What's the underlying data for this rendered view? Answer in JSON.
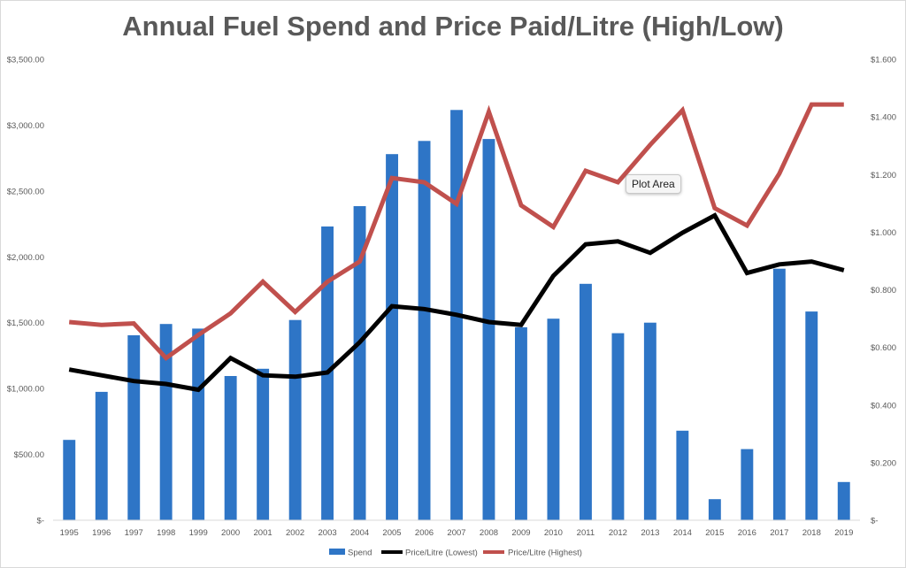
{
  "chart_data": {
    "type": "bar",
    "title": "Annual Fuel Spend and Price Paid/Litre (High/Low)",
    "categories": [
      "1995",
      "1996",
      "1997",
      "1998",
      "1999",
      "2000",
      "2001",
      "2002",
      "2003",
      "2004",
      "2005",
      "2006",
      "2007",
      "2008",
      "2009",
      "2010",
      "2011",
      "2012",
      "2013",
      "2014",
      "2015",
      "2016",
      "2017",
      "2018",
      "2019"
    ],
    "series": [
      {
        "name": "Spend",
        "type": "bar",
        "axis": "left",
        "color": "#2e75c6",
        "values": [
          610,
          975,
          1405,
          1490,
          1455,
          1095,
          1150,
          1520,
          2230,
          2385,
          2780,
          2880,
          3115,
          2895,
          1465,
          1530,
          1795,
          1420,
          1500,
          680,
          160,
          540,
          1910,
          1585,
          290
        ]
      },
      {
        "name": "Price/Litre (Lowest)",
        "type": "line",
        "axis": "right",
        "color": "#000000",
        "values": [
          0.523,
          0.503,
          0.483,
          0.473,
          0.453,
          0.563,
          0.503,
          0.498,
          0.513,
          0.618,
          0.743,
          0.733,
          0.713,
          0.688,
          0.678,
          0.848,
          0.958,
          0.968,
          0.928,
          0.998,
          1.058,
          0.858,
          0.888,
          0.898,
          0.868
        ]
      },
      {
        "name": "Price/Litre (Highest)",
        "type": "line",
        "axis": "right",
        "color": "#c0504d",
        "values": [
          0.688,
          0.678,
          0.683,
          0.563,
          0.643,
          0.718,
          0.828,
          0.723,
          0.828,
          0.898,
          1.188,
          1.173,
          1.098,
          1.418,
          1.093,
          1.018,
          1.213,
          1.173,
          1.303,
          1.423,
          1.083,
          1.023,
          1.203,
          1.443,
          1.443
        ]
      }
    ],
    "y_left": {
      "ylim": [
        0,
        3500
      ],
      "ticks": [
        0,
        500,
        1000,
        1500,
        2000,
        2500,
        3000,
        3500
      ],
      "tick_labels": [
        "$-",
        "$500.00",
        "$1,000.00",
        "$1,500.00",
        "$2,000.00",
        "$2,500.00",
        "$3,000.00",
        "$3,500.00"
      ]
    },
    "y_right": {
      "ylim": [
        0,
        1.6
      ],
      "ticks": [
        0,
        0.2,
        0.4,
        0.6,
        0.8,
        1.0,
        1.2,
        1.4,
        1.6
      ],
      "tick_labels": [
        "$-",
        "$0.200",
        "$0.400",
        "$0.600",
        "$0.800",
        "$1.000",
        "$1.200",
        "$1.400",
        "$1.600"
      ]
    },
    "grid": false,
    "legend": {
      "position": "bottom",
      "entries": [
        "Spend",
        "Price/Litre (Lowest)",
        "Price/Litre (Highest)"
      ]
    }
  },
  "tooltip": {
    "label": "Plot Area"
  }
}
